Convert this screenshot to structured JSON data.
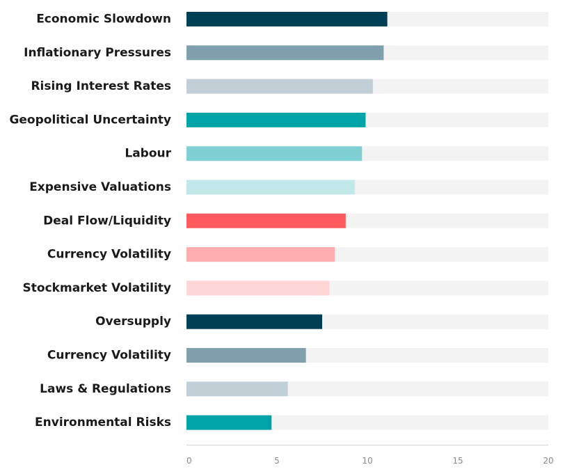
{
  "chart_data": {
    "type": "bar",
    "orientation": "horizontal",
    "title": "",
    "xlabel": "",
    "ylabel": "",
    "xlim": [
      0,
      20
    ],
    "ticks": [
      0,
      5,
      10,
      15,
      20
    ],
    "tick_labels": [
      "0",
      "5",
      "10",
      "15",
      "20"
    ],
    "grid": false,
    "legend": "none",
    "track_color": "#f3f3f3",
    "categories": [
      "Economic Slowdown",
      "Inflationary Pressures",
      "Rising Interest Rates",
      "Geopolitical Uncertainty",
      "Labour",
      "Expensive Valuations",
      "Deal Flow/Liquidity",
      "Currency Volatility",
      "Stockmarket Volatility",
      "Oversupply",
      "Currency Volatility",
      "Laws & Regulations",
      "Environmental Risks"
    ],
    "values": [
      11.1,
      10.9,
      10.3,
      9.9,
      9.7,
      9.3,
      8.8,
      8.2,
      7.9,
      7.5,
      6.6,
      5.6,
      4.7
    ],
    "colors": [
      "#003f54",
      "#80a0ad",
      "#c0d0d6",
      "#00a3a8",
      "#80d1d3",
      "#c0e8e9",
      "#ff5b5f",
      "#ffadaf",
      "#ffd6d7",
      "#003f54",
      "#80a0ad",
      "#c0d0d6",
      "#00a3a8"
    ]
  }
}
